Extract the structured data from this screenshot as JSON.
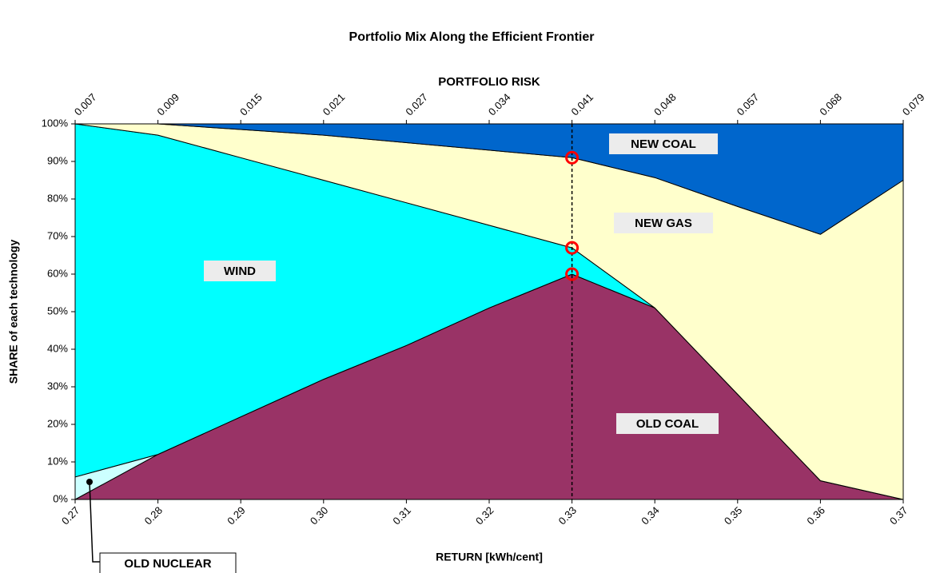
{
  "chart_data": {
    "type": "stacked_area",
    "title": "Portfolio Mix Along the Efficient Frontier",
    "top_axis_title": "PORTFOLIO RISK",
    "x_label": "RETURN [kWh/cent]",
    "y_label": "SHARE of each technology",
    "categories": [
      "0.27",
      "0.28",
      "0.29",
      "0.30",
      "0.31",
      "0.32",
      "0.33",
      "0.34",
      "0.35",
      "0.36",
      "0.37"
    ],
    "top_labels": [
      "0.007",
      "0.009",
      "0.015",
      "0.021",
      "0.027",
      "0.034",
      "0.041",
      "0.048",
      "0.057",
      "0.068",
      "0.079"
    ],
    "series": [
      {
        "name": "OLD COAL",
        "color": "#993366",
        "values": [
          0,
          12,
          22,
          32,
          41,
          51,
          60,
          51,
          28,
          5,
          0
        ]
      },
      {
        "name": "OLD NUCLEAR",
        "color": "#ccffff",
        "values": [
          6,
          0,
          0,
          0,
          0,
          0,
          0,
          0,
          0,
          0,
          0
        ]
      },
      {
        "name": "WIND",
        "color": "#00ffff",
        "values": [
          94,
          85,
          69,
          53,
          38,
          22,
          7,
          0,
          0,
          0,
          0
        ]
      },
      {
        "name": "NEW GAS",
        "color": "#ffffcc",
        "values": [
          0,
          3,
          7.5,
          12,
          16,
          20,
          24,
          34.7,
          50,
          65.6,
          85
        ]
      },
      {
        "name": "NEW COAL",
        "color": "#0066cc",
        "values": [
          0,
          0,
          1.5,
          3,
          5,
          7,
          9,
          14.3,
          22,
          29.4,
          15
        ]
      }
    ],
    "ylim": [
      0,
      100
    ],
    "yticks": [
      {
        "value": 0,
        "label": "0%"
      },
      {
        "value": 10,
        "label": "10%"
      },
      {
        "value": 20,
        "label": "20%"
      },
      {
        "value": 30,
        "label": "30%"
      },
      {
        "value": 40,
        "label": "40%"
      },
      {
        "value": 50,
        "label": "50%"
      },
      {
        "value": 60,
        "label": "60%"
      },
      {
        "value": 70,
        "label": "70%"
      },
      {
        "value": 80,
        "label": "80%"
      },
      {
        "value": 90,
        "label": "90%"
      },
      {
        "value": 100,
        "label": "100%"
      }
    ]
  }
}
